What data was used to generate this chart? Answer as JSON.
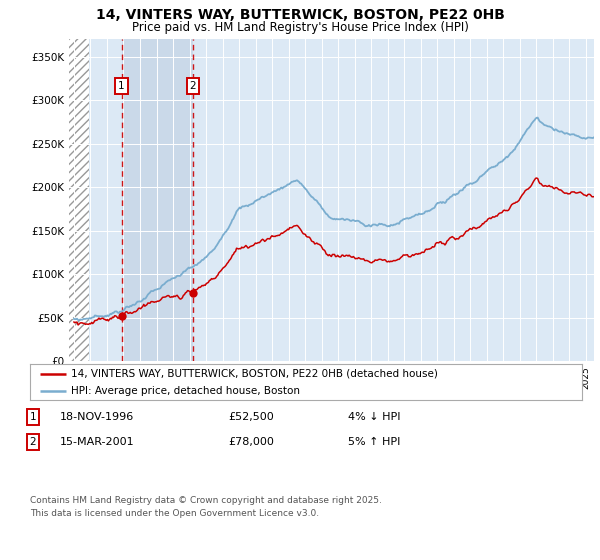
{
  "title": "14, VINTERS WAY, BUTTERWICK, BOSTON, PE22 0HB",
  "subtitle": "Price paid vs. HM Land Registry's House Price Index (HPI)",
  "background_color": "#ffffff",
  "plot_bg_color": "#dce9f5",
  "legend_entry1": "14, VINTERS WAY, BUTTERWICK, BOSTON, PE22 0HB (detached house)",
  "legend_entry2": "HPI: Average price, detached house, Boston",
  "marker1_date": "18-NOV-1996",
  "marker1_price": "£52,500",
  "marker1_hpi": "4% ↓ HPI",
  "marker2_date": "15-MAR-2001",
  "marker2_price": "£78,000",
  "marker2_hpi": "5% ↑ HPI",
  "footer": "Contains HM Land Registry data © Crown copyright and database right 2025.\nThis data is licensed under the Open Government Licence v3.0.",
  "sale1_year": 1996.88,
  "sale1_price": 52500,
  "sale2_year": 2001.21,
  "sale2_price": 78000,
  "xmin": 1993.7,
  "xmax": 2025.5,
  "ymin": 0,
  "ymax": 370000,
  "line_color_red": "#cc0000",
  "line_color_blue": "#7aadcf",
  "dot_color": "#cc0000",
  "shade_between_sales_color": "#c8d8e8",
  "yticks": [
    0,
    50000,
    100000,
    150000,
    200000,
    250000,
    300000,
    350000
  ],
  "ylabels": [
    "£0",
    "£50K",
    "£100K",
    "£150K",
    "£200K",
    "£250K",
    "£300K",
    "£350K"
  ]
}
